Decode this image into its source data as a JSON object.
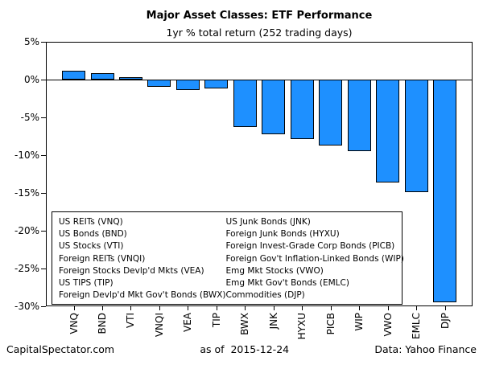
{
  "chart_data": {
    "type": "bar",
    "title": "Major Asset Classes: ETF Performance",
    "subtitle": "1yr % total return (252 trading days)",
    "categories": [
      "VNQ",
      "BND",
      "VTI",
      "VNQI",
      "VEA",
      "TIP",
      "BWX",
      "JNK",
      "HYXU",
      "PICB",
      "WIP",
      "VWO",
      "EMLC",
      "DJP"
    ],
    "values": [
      1.2,
      0.9,
      0.3,
      -0.9,
      -1.4,
      -1.2,
      -6.3,
      -7.2,
      -7.9,
      -8.7,
      -9.5,
      -13.6,
      -14.9,
      -29.5
    ],
    "ylabel": "",
    "xlabel": "",
    "ylim": [
      -30,
      5
    ],
    "yticks": [
      5,
      0,
      -5,
      -10,
      -15,
      -20,
      -25,
      -30
    ],
    "ytick_labels": [
      "5%",
      "0%",
      "-5%",
      "-10%",
      "-15%",
      "-20%",
      "-25%",
      "-30%"
    ],
    "bar_color": "#1E90FF",
    "bar_border_color": "#000000",
    "grid": "off",
    "legend_position": "inside-bottom-left",
    "legend": {
      "col1": [
        "US REITs (VNQ)",
        "US Bonds (BND)",
        "US Stocks (VTI)",
        "Foreign REITs (VNQI)",
        "Foreign Stocks Devlp'd Mkts (VEA)",
        "US TIPS (TIP)",
        "Foreign Devlp'd Mkt Gov't Bonds (BWX)"
      ],
      "col2": [
        "US Junk Bonds (JNK)",
        "Foreign Junk Bonds (HYXU)",
        "Foreign Invest-Grade Corp Bonds (PICB)",
        "Foreign Gov't Inflation-Linked Bonds (WIP)",
        "Emg Mkt Stocks (VWO)",
        "Emg Mkt Gov't Bonds (EMLC)",
        "Commodities (DJP)"
      ]
    }
  },
  "footer": {
    "left": "CapitalSpectator.com",
    "center": "as of  2015-12-24",
    "right": "Data: Yahoo Finance"
  }
}
